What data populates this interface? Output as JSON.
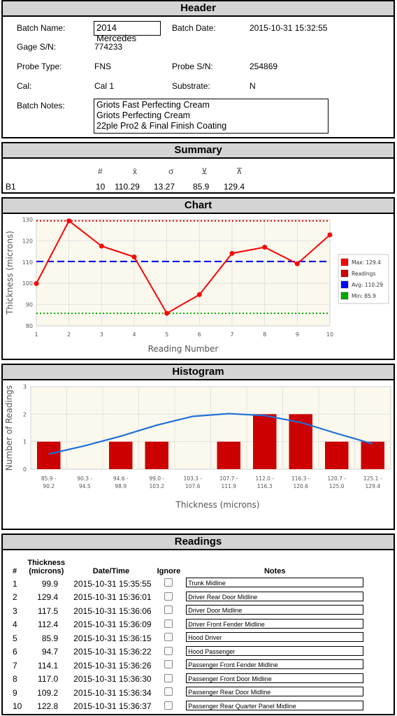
{
  "header": {
    "title": "Header",
    "batch_name_label": "Batch Name:",
    "batch_name": "2014 Mercedes",
    "batch_date_label": "Batch Date:",
    "batch_date": "2015-10-31 15:32:55",
    "gage_sn_label": "Gage S/N:",
    "gage_sn": "774233",
    "probe_type_label": "Probe Type:",
    "probe_type": "FNS",
    "probe_sn_label": "Probe S/N:",
    "probe_sn": "254869",
    "cal_label": "Cal:",
    "cal": "Cal 1",
    "substrate_label": "Substrate:",
    "substrate": "N",
    "batch_notes_label": "Batch Notes:",
    "batch_notes": [
      "Griots Fast Perfecting Cream",
      "Griots Perfecting Cream",
      "22ple Pro2 & Final Finish Coating"
    ]
  },
  "summary": {
    "title": "Summary",
    "symbols": [
      "#",
      "x̄",
      "σ",
      "⊻",
      "⊼"
    ],
    "row_label": "B1",
    "values": [
      "10",
      "110.29",
      "13.27",
      "85.9",
      "129.4"
    ]
  },
  "chart_panel": {
    "title": "Chart"
  },
  "histogram_panel": {
    "title": "Histogram"
  },
  "chart_data": [
    {
      "type": "line",
      "ylabel": "Thickness (microns)",
      "xlabel": "Reading Number",
      "x": [
        1,
        2,
        3,
        4,
        5,
        6,
        7,
        8,
        9,
        10
      ],
      "ylim": [
        80,
        130
      ],
      "yticks": [
        80,
        90,
        100,
        110,
        120,
        130
      ],
      "series": [
        {
          "name": "Readings",
          "values": [
            99.9,
            129.4,
            117.5,
            112.4,
            85.9,
            94.7,
            114.1,
            117.0,
            109.2,
            122.8
          ],
          "color": "#ff0000"
        }
      ],
      "reference_lines": [
        {
          "name": "Max: 129.4",
          "value": 129.4,
          "color": "#dd0000"
        },
        {
          "name": "Avg: 110.29",
          "value": 110.29,
          "color": "#0000ee"
        },
        {
          "name": "Min: 85.9",
          "value": 85.9,
          "color": "#00aa00"
        }
      ],
      "legend": [
        "Max: 129.4",
        "Readings",
        "Avg: 110.29",
        "Min: 85.9"
      ],
      "legend_colors": [
        "#ff0000",
        "#cc0000",
        "#0000ff",
        "#00aa00"
      ],
      "legend_position": "right",
      "grid": true
    },
    {
      "type": "bar",
      "ylabel": "Number of Readings",
      "xlabel": "Thickness (microns)",
      "categories": [
        "85.9 - 90.2",
        "90.3 - 94.5",
        "94.6 - 98.9",
        "99.0 - 103.2",
        "103.3 - 107.6",
        "107.7 - 111.9",
        "112.0 - 116.3",
        "116.3 - 120.6",
        "120.7 - 125.0",
        "125.1 - 129.4"
      ],
      "values": [
        1,
        0,
        1,
        1,
        0,
        1,
        2,
        2,
        1,
        1
      ],
      "curve": [
        0.55,
        0.85,
        1.2,
        1.6,
        1.92,
        2.02,
        1.95,
        1.7,
        1.3,
        0.92
      ],
      "ylim": [
        0,
        3
      ],
      "yticks": [
        0,
        1,
        2,
        3
      ],
      "bar_color": "#cc0000",
      "curve_color": "#1f6fd6",
      "grid": true
    }
  ],
  "readings": {
    "title": "Readings",
    "col_num": "#",
    "col_thickness_1": "Thickness",
    "col_thickness_2": "(microns)",
    "col_datetime": "Date/Time",
    "col_ignore": "Ignore",
    "col_notes": "Notes",
    "rows": [
      {
        "n": "1",
        "t": "99.9",
        "dt": "2015-10-31 15:35:55",
        "note": "Trunk Midline"
      },
      {
        "n": "2",
        "t": "129.4",
        "dt": "2015-10-31 15:36:01",
        "note": "Driver Rear Door Midline"
      },
      {
        "n": "3",
        "t": "117.5",
        "dt": "2015-10-31 15:36:06",
        "note": "Driver Door Midline"
      },
      {
        "n": "4",
        "t": "112.4",
        "dt": "2015-10-31 15:36:09",
        "note": "Driver Front Fender Midline"
      },
      {
        "n": "5",
        "t": "85.9",
        "dt": "2015-10-31 15:36:15",
        "note": "Hood Driver"
      },
      {
        "n": "6",
        "t": "94.7",
        "dt": "2015-10-31 15:36:22",
        "note": "Hood Passenger"
      },
      {
        "n": "7",
        "t": "114.1",
        "dt": "2015-10-31 15:36:26",
        "note": "Passenger Front Fender Midline"
      },
      {
        "n": "8",
        "t": "117.0",
        "dt": "2015-10-31 15:36:30",
        "note": "Passenger Front Door Midline"
      },
      {
        "n": "9",
        "t": "109.2",
        "dt": "2015-10-31 15:36:34",
        "note": "Passenger Rear Door Midline"
      },
      {
        "n": "10",
        "t": "122.8",
        "dt": "2015-10-31 15:36:37",
        "note": "Passenger Rear Quarter Panel Midline"
      }
    ]
  }
}
